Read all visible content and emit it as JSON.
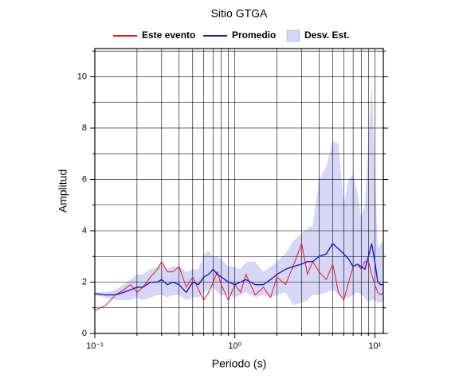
{
  "chart_data": {
    "type": "line",
    "title": "Sitio GTGA",
    "xlabel": "Periodo (s)",
    "ylabel": "Amplitud",
    "xscale": "log",
    "xlim": [
      0.1,
      11.5
    ],
    "ylim": [
      0,
      11.1
    ],
    "xticks": [
      {
        "value": 0.1,
        "label": "10⁻¹"
      },
      {
        "value": 1,
        "label": "10⁰"
      },
      {
        "value": 10,
        "label": "10¹"
      }
    ],
    "xminorticks": [
      0.2,
      0.3,
      0.4,
      0.5,
      0.6,
      0.7,
      0.8,
      0.9,
      2,
      3,
      4,
      5,
      6,
      7,
      8,
      9
    ],
    "yticks": [
      0,
      2,
      4,
      6,
      8,
      10
    ],
    "yminorticks": [
      1,
      3,
      5,
      7,
      9,
      11
    ],
    "grid": true,
    "legend": "top",
    "x": [
      0.1,
      0.12,
      0.14,
      0.16,
      0.18,
      0.2,
      0.22,
      0.25,
      0.28,
      0.3,
      0.33,
      0.36,
      0.4,
      0.45,
      0.5,
      0.55,
      0.6,
      0.65,
      0.7,
      0.75,
      0.8,
      0.9,
      1.0,
      1.1,
      1.2,
      1.4,
      1.6,
      1.8,
      2.0,
      2.3,
      2.6,
      3.0,
      3.3,
      3.6,
      4.0,
      4.5,
      5.0,
      5.5,
      6.0,
      6.5,
      7.0,
      7.5,
      8.0,
      8.5,
      9.0,
      9.5,
      10.0,
      10.5,
      11.0,
      11.5
    ],
    "series": [
      {
        "name": "Este evento",
        "color": "#e8191c",
        "values": [
          0.9,
          1.1,
          1.5,
          1.7,
          1.9,
          1.6,
          1.8,
          2.2,
          2.5,
          2.8,
          2.4,
          2.4,
          2.6,
          1.8,
          2.2,
          1.7,
          1.3,
          1.6,
          2.0,
          2.4,
          1.9,
          1.3,
          1.9,
          1.6,
          2.3,
          1.5,
          1.8,
          1.4,
          2.2,
          1.9,
          2.6,
          3.5,
          2.3,
          2.8,
          2.4,
          2.1,
          2.7,
          1.6,
          1.3,
          2.0,
          2.6,
          2.7,
          2.5,
          2.8,
          2.8,
          2.3,
          1.9,
          1.6,
          1.5,
          1.6
        ]
      },
      {
        "name": "Promedio",
        "color": "#1a1acc",
        "values": [
          1.55,
          1.5,
          1.5,
          1.6,
          1.7,
          1.8,
          1.8,
          2.0,
          2.0,
          2.1,
          1.9,
          2.0,
          1.9,
          1.6,
          2.0,
          1.9,
          2.2,
          2.3,
          2.5,
          2.3,
          2.2,
          2.0,
          1.9,
          2.0,
          2.1,
          1.9,
          1.9,
          2.1,
          2.3,
          2.5,
          2.6,
          2.7,
          2.8,
          2.8,
          3.0,
          3.1,
          3.5,
          3.3,
          3.1,
          2.9,
          2.6,
          2.7,
          2.6,
          2.5,
          3.0,
          3.5,
          2.8,
          2.0,
          1.9,
          1.9
        ]
      },
      {
        "name": "Desv. Est.",
        "color": "#d6d6f7",
        "lower": [
          1.5,
          1.4,
          1.3,
          1.3,
          1.3,
          1.4,
          1.3,
          1.4,
          1.5,
          1.5,
          1.4,
          1.5,
          1.5,
          1.3,
          1.4,
          1.4,
          1.6,
          1.7,
          1.8,
          1.6,
          1.5,
          1.5,
          1.4,
          1.5,
          1.6,
          1.4,
          1.5,
          1.4,
          1.5,
          1.6,
          1.1,
          1.2,
          1.3,
          1.5,
          1.5,
          1.6,
          1.7,
          1.5,
          1.4,
          1.4,
          1.5,
          1.6,
          1.5,
          1.4,
          1.2,
          1.3,
          1.3,
          1.2,
          1.2,
          1.3
        ],
        "upper": [
          1.6,
          1.6,
          1.7,
          1.9,
          2.1,
          2.3,
          2.3,
          2.5,
          2.6,
          2.7,
          2.5,
          2.6,
          2.6,
          2.4,
          2.5,
          2.5,
          3.1,
          3.2,
          3.0,
          3.0,
          2.9,
          2.6,
          2.6,
          2.5,
          2.8,
          2.8,
          2.4,
          2.6,
          2.8,
          3.1,
          3.6,
          3.9,
          4.1,
          4.2,
          6.0,
          6.5,
          7.5,
          7.4,
          5.0,
          6.0,
          6.2,
          5.5,
          4.5,
          5.0,
          7.5,
          9.8,
          6.5,
          3.3,
          3.5,
          3.6
        ]
      }
    ]
  }
}
